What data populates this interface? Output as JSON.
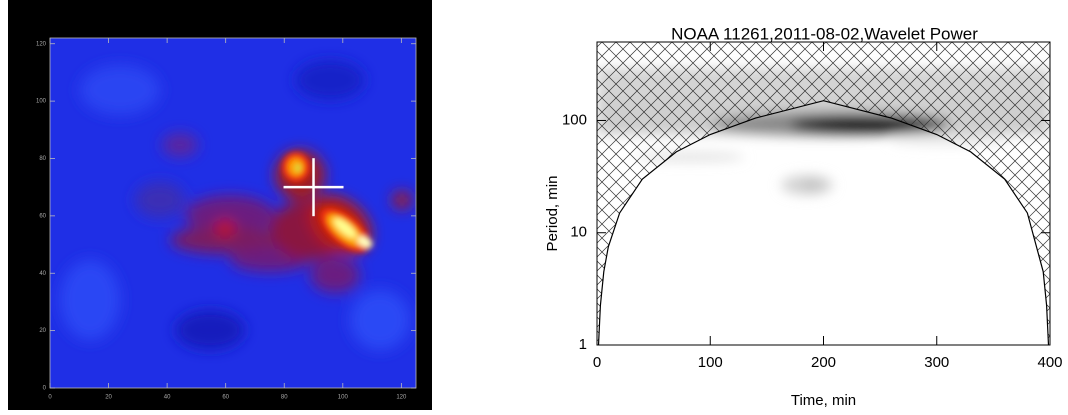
{
  "chart_data": [
    {
      "type": "image",
      "xlim": [
        0,
        125
      ],
      "ylim": [
        0,
        122
      ],
      "xticks": [
        0,
        20,
        40,
        60,
        80,
        100,
        120
      ],
      "yticks": [
        0,
        20,
        40,
        60,
        80,
        100,
        120
      ],
      "crosshair": {
        "x": 90,
        "y": 70
      }
    },
    {
      "type": "wavelet",
      "title": "NOAA 11261,2011-08-02,Wavelet Power",
      "xlabel": "Time, min",
      "ylabel": "Period, min",
      "xlim": [
        0,
        400
      ],
      "ylim": [
        1,
        500
      ],
      "log_y": true,
      "xticks": [
        0,
        100,
        200,
        300,
        400
      ],
      "yticks": [
        1,
        10,
        100
      ],
      "coi": {
        "x": [
          1.33,
          3,
          6,
          10,
          20,
          40,
          70,
          100,
          140,
          200,
          260,
          300,
          330,
          360,
          380,
          394,
          397,
          398.67
        ],
        "period": [
          1,
          2.25,
          4.5,
          7.5,
          15,
          30,
          52.5,
          75,
          105,
          150,
          105,
          75,
          52.5,
          30,
          15,
          4.5,
          2.25,
          1
        ]
      }
    }
  ]
}
